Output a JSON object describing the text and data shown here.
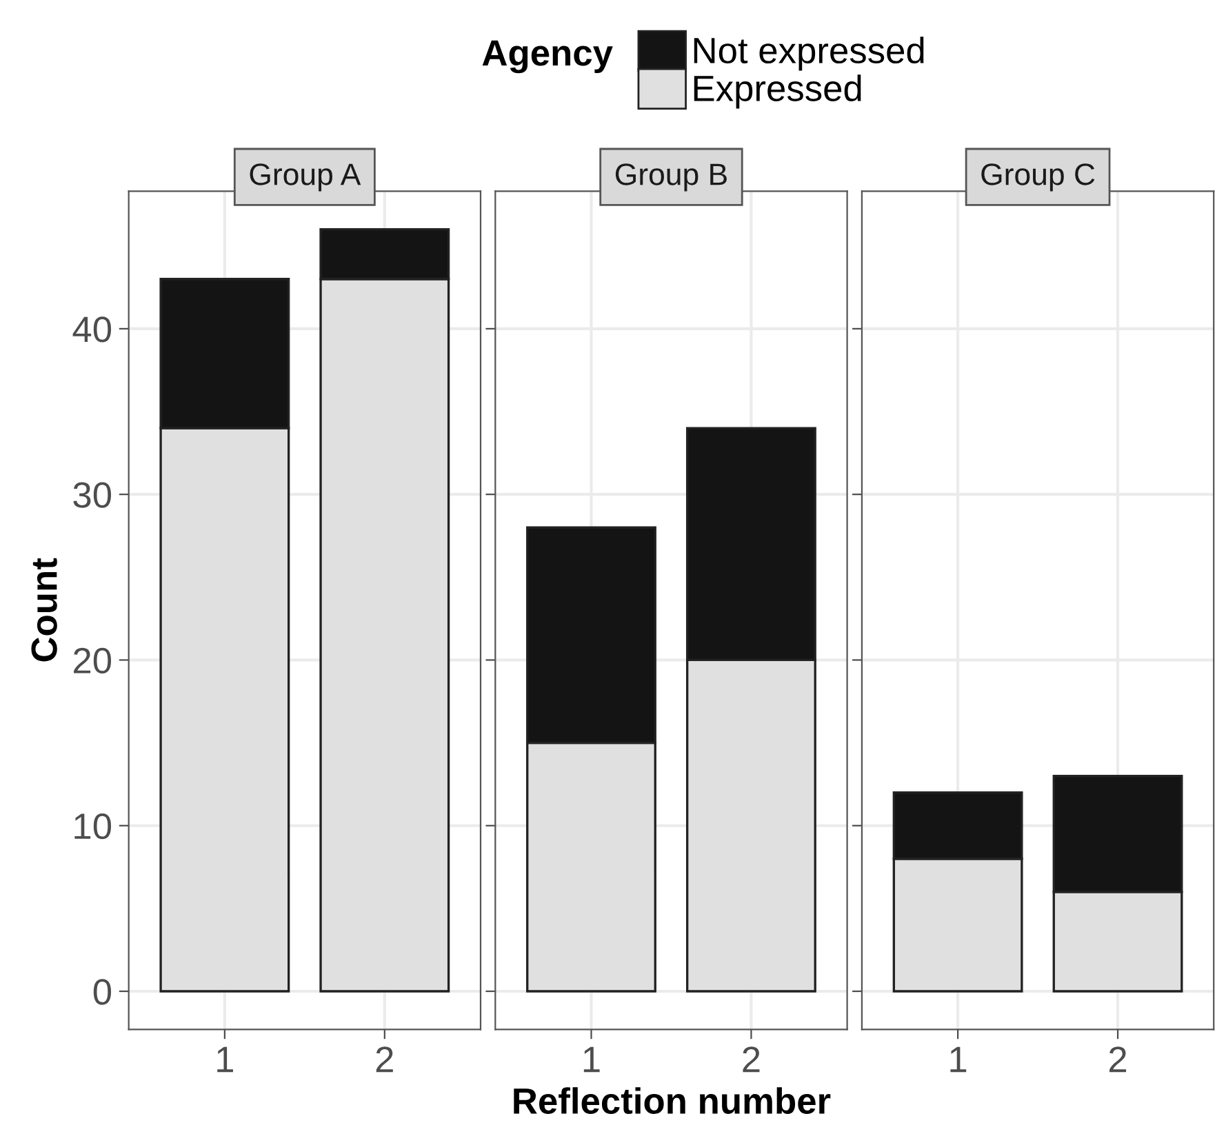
{
  "chart_data": [
    {
      "type": "bar",
      "title": "Group A",
      "categories": [
        "1",
        "2"
      ],
      "stacked": true,
      "ylabel": "Count",
      "legend_title": "Agency",
      "legend": "top",
      "grid": true,
      "ylim": [
        -2.3,
        48.3
      ],
      "yticks": [
        0,
        10,
        20,
        30,
        40
      ],
      "series": [
        {
          "name": "Expressed",
          "color": "#e0e0e0",
          "values": [
            34,
            43
          ]
        },
        {
          "name": "Not expressed",
          "color": "#141414",
          "values": [
            9,
            3
          ]
        }
      ]
    },
    {
      "type": "bar",
      "title": "Group B",
      "categories": [
        "1",
        "2"
      ],
      "stacked": true,
      "xlabel": "Reflection number",
      "grid": true,
      "tick_labels": "x",
      "ylim": [
        -2.3,
        48.3
      ],
      "yticks": [
        0,
        10,
        20,
        30,
        40
      ],
      "series": [
        {
          "color": "#e0e0e0",
          "values": [
            15,
            20
          ]
        },
        {
          "color": "#141414",
          "values": [
            13,
            14
          ]
        }
      ]
    },
    {
      "type": "bar",
      "title": "Group C",
      "categories": [
        "1",
        "2"
      ],
      "stacked": true,
      "grid": true,
      "tick_labels": "x",
      "ylim": [
        -2.3,
        48.3
      ],
      "yticks": [
        0,
        10,
        20,
        30,
        40
      ],
      "series": [
        {
          "color": "#e0e0e0",
          "values": [
            8,
            6
          ]
        },
        {
          "color": "#141414",
          "values": [
            4,
            7
          ]
        }
      ]
    }
  ]
}
